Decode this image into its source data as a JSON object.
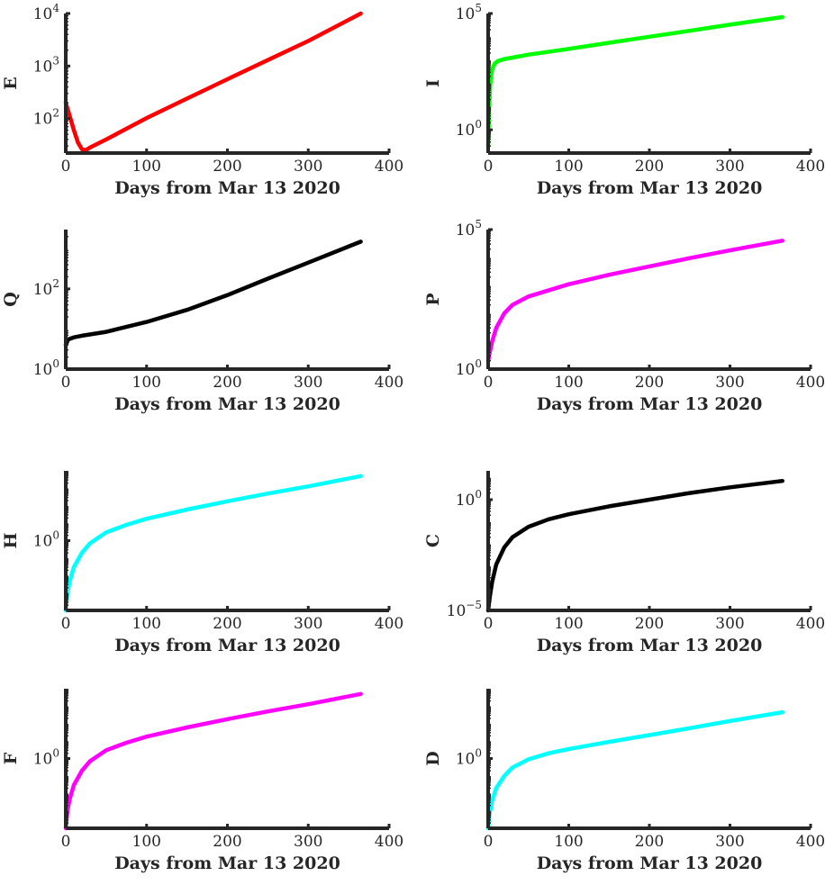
{
  "chart_data": [
    {
      "type": "line",
      "ylabel": "E",
      "xlabel": "Days from Mar 13 2020",
      "yscale": "log",
      "xlim": [
        0,
        400
      ],
      "ylim": [
        22,
        10000
      ],
      "xticks": [
        0,
        100,
        200,
        300,
        400
      ],
      "yticks": [
        {
          "value": 100,
          "base": "10",
          "exp": "2"
        },
        {
          "value": 1000,
          "base": "10",
          "exp": "3"
        },
        {
          "value": 10000,
          "base": "10",
          "exp": "4"
        }
      ],
      "color": "#ff0000",
      "series": [
        {
          "x": [
            0,
            5,
            10,
            15,
            20,
            25,
            30,
            50,
            100,
            150,
            200,
            250,
            300,
            365
          ],
          "y": [
            200,
            110,
            60,
            35,
            26,
            25,
            28,
            40,
            102,
            240,
            560,
            1300,
            3000,
            10000
          ]
        }
      ]
    },
    {
      "type": "line",
      "ylabel": "I",
      "xlabel": "Days from Mar 13 2020",
      "yscale": "log",
      "xlim": [
        0,
        400
      ],
      "ylim": [
        0.1,
        100000
      ],
      "xticks": [
        0,
        100,
        200,
        300,
        400
      ],
      "yticks": [
        {
          "value": 1,
          "base": "10",
          "exp": "0"
        },
        {
          "value": 100000,
          "base": "10",
          "exp": "5"
        }
      ],
      "color": "#00ff00",
      "series": [
        {
          "x": [
            0,
            1,
            2,
            3,
            5,
            8,
            12,
            20,
            50,
            100,
            150,
            200,
            250,
            300,
            365
          ],
          "y": [
            0.2,
            5,
            40,
            150,
            400,
            700,
            900,
            1100,
            1700,
            3000,
            5500,
            10000,
            18000,
            33000,
            70000
          ]
        }
      ]
    },
    {
      "type": "line",
      "ylabel": "Q",
      "xlabel": "Days from Mar 13 2020",
      "yscale": "log",
      "xlim": [
        0,
        400
      ],
      "ylim": [
        1,
        3000
      ],
      "xticks": [
        0,
        100,
        200,
        300,
        400
      ],
      "yticks": [
        {
          "value": 1,
          "base": "10",
          "exp": "0"
        },
        {
          "value": 100,
          "base": "10",
          "exp": "2"
        }
      ],
      "color": "#000000",
      "series": [
        {
          "x": [
            0,
            3,
            10,
            20,
            50,
            100,
            150,
            200,
            250,
            300,
            365
          ],
          "y": [
            4,
            5.5,
            6.2,
            6.8,
            8.5,
            15,
            30,
            70,
            180,
            450,
            1500
          ]
        }
      ]
    },
    {
      "type": "line",
      "ylabel": "P",
      "xlabel": "Days from Mar 13 2020",
      "yscale": "log",
      "xlim": [
        0,
        400
      ],
      "ylim": [
        1,
        100000
      ],
      "xticks": [
        0,
        100,
        200,
        300,
        400
      ],
      "yticks": [
        {
          "value": 1,
          "base": "10",
          "exp": "0"
        },
        {
          "value": 100000,
          "base": "10",
          "exp": "5"
        }
      ],
      "color": "#ff00ff",
      "series": [
        {
          "x": [
            0,
            2,
            5,
            10,
            20,
            30,
            50,
            100,
            150,
            200,
            250,
            300,
            365
          ],
          "y": [
            2,
            4,
            10,
            30,
            100,
            200,
            400,
            1100,
            2400,
            4800,
            9500,
            18000,
            40000
          ]
        }
      ]
    },
    {
      "type": "line",
      "ylabel": "H",
      "xlabel": "Days from Mar 13 2020",
      "yscale": "log",
      "xlim": [
        0,
        400
      ],
      "ylim": [
        0.0001,
        10000
      ],
      "xticks": [
        0,
        100,
        200,
        300,
        400
      ],
      "yticks": [
        {
          "value": 1,
          "base": "10",
          "exp": "0"
        }
      ],
      "color": "#00ffff",
      "series": [
        {
          "x": [
            0,
            2,
            5,
            10,
            20,
            30,
            50,
            75,
            100,
            150,
            200,
            250,
            300,
            365
          ],
          "y": [
            0.0001,
            0.001,
            0.005,
            0.03,
            0.2,
            0.7,
            3,
            8,
            18,
            60,
            180,
            500,
            1300,
            5000
          ]
        }
      ]
    },
    {
      "type": "line",
      "ylabel": "C",
      "xlabel": "Days from Mar 13 2020",
      "yscale": "log",
      "xlim": [
        0,
        400
      ],
      "ylim": [
        1e-05,
        20
      ],
      "xticks": [
        0,
        100,
        200,
        300,
        400
      ],
      "yticks": [
        {
          "value": 1e-05,
          "base": "10",
          "exp": "−5"
        },
        {
          "value": 1,
          "base": "10",
          "exp": "0"
        }
      ],
      "color": "#000000",
      "series": [
        {
          "x": [
            0,
            2,
            5,
            10,
            20,
            30,
            50,
            75,
            100,
            150,
            200,
            250,
            300,
            365
          ],
          "y": [
            1e-05,
            4e-05,
            0.0002,
            0.0012,
            0.007,
            0.02,
            0.06,
            0.13,
            0.22,
            0.5,
            1,
            2,
            3.6,
            7
          ]
        }
      ]
    },
    {
      "type": "line",
      "ylabel": "F",
      "xlabel": "Days from Mar 13 2020",
      "yscale": "log",
      "xlim": [
        0,
        400
      ],
      "ylim": [
        0.0001,
        10000
      ],
      "xticks": [
        0,
        100,
        200,
        300,
        400
      ],
      "yticks": [
        {
          "value": 1,
          "base": "10",
          "exp": "0"
        }
      ],
      "color": "#ff00ff",
      "series": [
        {
          "x": [
            0,
            2,
            5,
            10,
            20,
            30,
            50,
            75,
            100,
            150,
            200,
            250,
            300,
            365
          ],
          "y": [
            0.0001,
            0.001,
            0.005,
            0.03,
            0.2,
            0.7,
            3,
            8,
            18,
            60,
            180,
            500,
            1300,
            5000
          ]
        }
      ]
    },
    {
      "type": "line",
      "ylabel": "D",
      "xlabel": "Days from Mar 13 2020",
      "yscale": "log",
      "xlim": [
        0,
        400
      ],
      "ylim": [
        0.0001,
        10000
      ],
      "xticks": [
        0,
        100,
        200,
        300,
        400
      ],
      "yticks": [
        {
          "value": 1,
          "base": "10",
          "exp": "0"
        }
      ],
      "color": "#00ffff",
      "series": [
        {
          "x": [
            0,
            2,
            5,
            10,
            20,
            30,
            50,
            75,
            100,
            150,
            200,
            250,
            300,
            365
          ],
          "y": [
            0.0001,
            0.0008,
            0.004,
            0.02,
            0.1,
            0.3,
            0.9,
            2,
            3.5,
            9,
            22,
            55,
            140,
            450
          ]
        }
      ]
    }
  ]
}
